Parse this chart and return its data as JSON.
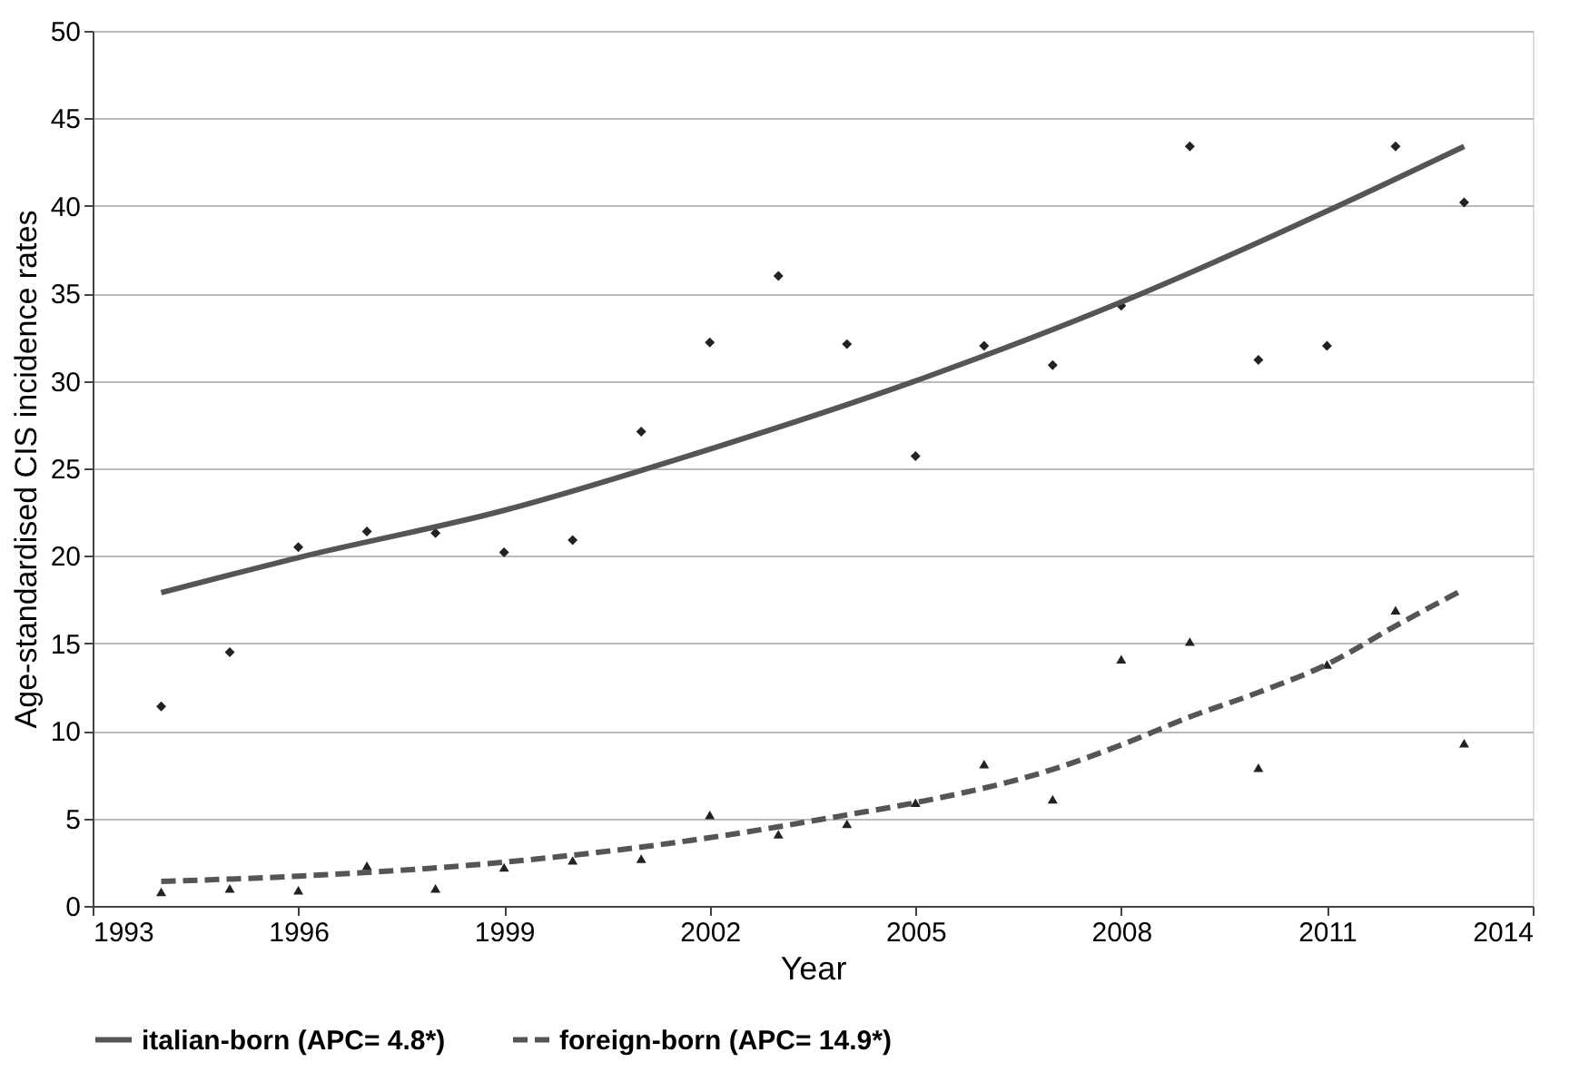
{
  "chart_data": {
    "type": "scatter",
    "xlabel": "Year",
    "ylabel": "Age-standardised CIS incidence rates",
    "xlim": [
      1993,
      2014
    ],
    "xticks": [
      1993,
      1996,
      1999,
      2002,
      2005,
      2008,
      2011,
      2014
    ],
    "ylim": [
      0,
      50
    ],
    "yticks": [
      0,
      5,
      10,
      15,
      20,
      25,
      30,
      35,
      40,
      45,
      50
    ],
    "grid": "y",
    "legend": "bottom",
    "series": [
      {
        "color": "#222222",
        "marker": "diamond",
        "x": [
          1994,
          1995,
          1996,
          1997,
          1998,
          1999,
          2000,
          2001,
          2002,
          2003,
          2004,
          2005,
          2006,
          2007,
          2008,
          2009,
          2010,
          2011,
          2012,
          2013
        ],
        "values": [
          11.4,
          14.5,
          20.5,
          21.4,
          21.3,
          20.2,
          20.9,
          27.1,
          32.2,
          36.0,
          32.1,
          25.7,
          32.0,
          30.9,
          34.3,
          43.4,
          31.2,
          32.0,
          43.4,
          40.2
        ]
      },
      {
        "color": "#222222",
        "marker": "triangle",
        "x": [
          1994,
          1995,
          1996,
          1997,
          1998,
          1999,
          2000,
          2001,
          2002,
          2003,
          2004,
          2005,
          2006,
          2007,
          2008,
          2009,
          2010,
          2011,
          2012,
          2013
        ],
        "values": [
          0.8,
          1.0,
          0.9,
          2.3,
          1.0,
          2.2,
          2.6,
          2.7,
          5.2,
          4.1,
          4.7,
          5.9,
          8.1,
          6.1,
          14.1,
          15.1,
          7.9,
          13.8,
          16.9,
          9.3
        ]
      },
      {
        "type": "line",
        "name": "italian-born (APC= 4.8*)",
        "color": "#555555",
        "line_style": "solid",
        "x": [
          1994,
          1996,
          1999,
          2002,
          2005,
          2008,
          2011,
          2013
        ],
        "values": [
          17.9,
          19.9,
          22.6,
          26.1,
          30.0,
          34.5,
          39.7,
          43.4
        ]
      },
      {
        "type": "line",
        "name": "foreign-born (APC= 14.9*)",
        "color": "#555555",
        "line_style": "dashed",
        "x": [
          1994,
          1996,
          1999,
          2002,
          2004,
          2005,
          2007,
          2008,
          2009,
          2010,
          2011,
          2012,
          2013
        ],
        "values": [
          1.4,
          1.7,
          2.5,
          3.9,
          5.2,
          5.9,
          7.8,
          9.2,
          10.8,
          12.2,
          13.8,
          16.0,
          18.1
        ]
      }
    ]
  }
}
